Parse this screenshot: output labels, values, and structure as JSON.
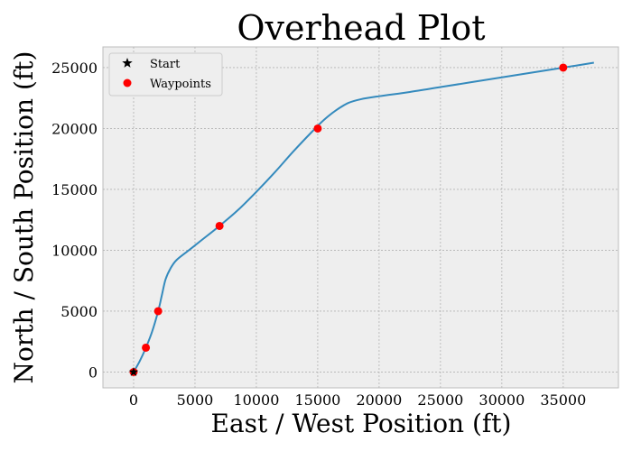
{
  "chart_data": {
    "type": "line",
    "title": "Overhead Plot",
    "xlabel": "East / West Position (ft)",
    "ylabel": "North / South Position (ft)",
    "xlim": [
      -2500,
      39500
    ],
    "ylim": [
      -1300,
      26700
    ],
    "xticks": [
      0,
      5000,
      10000,
      15000,
      20000,
      25000,
      30000,
      35000
    ],
    "yticks": [
      0,
      5000,
      10000,
      15000,
      20000,
      25000
    ],
    "grid": true,
    "legend_position": "upper-left",
    "series": [
      {
        "name": "",
        "role": "trajectory",
        "color": "#348ABD",
        "x": [
          0,
          500,
          1000,
          1500,
          2000,
          2300,
          2600,
          3000,
          3500,
          4500,
          5500,
          7000,
          8500,
          10000,
          11500,
          13000,
          14500,
          15500,
          16500,
          17500,
          18500,
          20000,
          22500,
          25000,
          27500,
          30000,
          32500,
          35000,
          37500
        ],
        "y": [
          0,
          900,
          2000,
          3300,
          5000,
          6300,
          7600,
          8500,
          9200,
          10000,
          10800,
          12000,
          13300,
          14800,
          16400,
          18100,
          19700,
          20700,
          21500,
          22100,
          22400,
          22650,
          23000,
          23400,
          23800,
          24200,
          24600,
          25000,
          25400
        ]
      },
      {
        "name": "Waypoints",
        "role": "markers",
        "color": "#FF0000",
        "marker": "circle",
        "x": [
          0,
          1000,
          2000,
          7000,
          15000,
          35000
        ],
        "y": [
          0,
          2000,
          5000,
          12000,
          20000,
          25000
        ]
      },
      {
        "name": "Start",
        "role": "start",
        "color": "#000000",
        "marker": "star",
        "x": [
          0
        ],
        "y": [
          0
        ]
      }
    ],
    "legend": [
      {
        "label": "Start",
        "marker": "star",
        "color": "#000000"
      },
      {
        "label": "Waypoints",
        "marker": "circle",
        "color": "#FF0000"
      }
    ],
    "plot_bg": "#EEEEEE",
    "grid_color": "#B2B2B2"
  }
}
